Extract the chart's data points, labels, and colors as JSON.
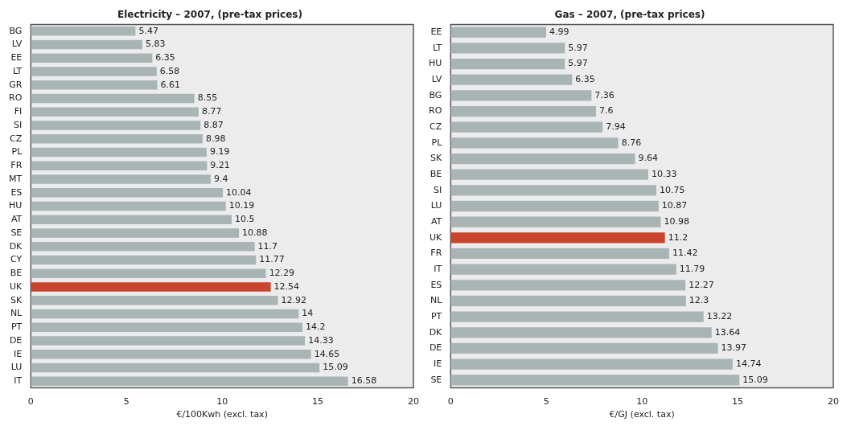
{
  "chart_data": [
    {
      "type": "bar",
      "orientation": "horizontal",
      "title": "Electricity – 2007, (pre-tax prices)",
      "xlabel": "€/100Kwh (excl. tax)",
      "categories": [
        "BG",
        "LV",
        "EE",
        "LT",
        "GR",
        "RO",
        "FI",
        "SI",
        "CZ",
        "PL",
        "FR",
        "MT",
        "ES",
        "HU",
        "AT",
        "SE",
        "DK",
        "CY",
        "BE",
        "UK",
        "SK",
        "NL",
        "PT",
        "DE",
        "IE",
        "LU",
        "IT"
      ],
      "values": [
        5.47,
        5.83,
        6.35,
        6.58,
        6.61,
        8.55,
        8.77,
        8.87,
        8.98,
        9.19,
        9.21,
        9.4,
        10.04,
        10.19,
        10.5,
        10.88,
        11.7,
        11.77,
        12.29,
        12.54,
        12.92,
        14,
        14.2,
        14.33,
        14.65,
        15.09,
        16.58
      ],
      "colors": [
        "#a9b5b5",
        "#a9b5b5",
        "#a9b5b5",
        "#a9b5b5",
        "#a9b5b5",
        "#a9b5b5",
        "#a9b5b5",
        "#a9b5b5",
        "#a9b5b5",
        "#a9b5b5",
        "#a9b5b5",
        "#a9b5b5",
        "#a9b5b5",
        "#a9b5b5",
        "#a9b5b5",
        "#a9b5b5",
        "#a9b5b5",
        "#a9b5b5",
        "#a9b5b5",
        "#c9452d",
        "#a9b5b5",
        "#a9b5b5",
        "#a9b5b5",
        "#a9b5b5",
        "#a9b5b5",
        "#a9b5b5",
        "#a9b5b5"
      ],
      "xlim": [
        0,
        20
      ],
      "xticks": [
        0,
        5,
        10,
        15,
        20
      ],
      "data_labels": true,
      "grid": false,
      "legend": false
    },
    {
      "type": "bar",
      "orientation": "horizontal",
      "title": "Gas – 2007, (pre-tax prices)",
      "xlabel": "€/GJ (excl. tax)",
      "categories": [
        "EE",
        "LT",
        "HU",
        "LV",
        "BG",
        "RO",
        "CZ",
        "PL",
        "SK",
        "BE",
        "SI",
        "LU",
        "AT",
        "UK",
        "FR",
        "IT",
        "ES",
        "NL",
        "PT",
        "DK",
        "DE",
        "IE",
        "SE"
      ],
      "values": [
        4.99,
        5.97,
        5.97,
        6.35,
        7.36,
        7.6,
        7.94,
        8.76,
        9.64,
        10.33,
        10.75,
        10.87,
        10.98,
        11.2,
        11.42,
        11.79,
        12.27,
        12.3,
        13.22,
        13.64,
        13.97,
        14.74,
        15.09
      ],
      "colors": [
        "#a9b5b5",
        "#a9b5b5",
        "#a9b5b5",
        "#a9b5b5",
        "#a9b5b5",
        "#a9b5b5",
        "#a9b5b5",
        "#a9b5b5",
        "#a9b5b5",
        "#a9b5b5",
        "#a9b5b5",
        "#a9b5b5",
        "#a9b5b5",
        "#c9452d",
        "#a9b5b5",
        "#a9b5b5",
        "#a9b5b5",
        "#a9b5b5",
        "#a9b5b5",
        "#a9b5b5",
        "#a9b5b5",
        "#a9b5b5",
        "#a9b5b5"
      ],
      "xlim": [
        0,
        20
      ],
      "xticks": [
        0,
        5,
        10,
        15,
        20
      ],
      "data_labels": true,
      "grid": false,
      "legend": false
    }
  ]
}
